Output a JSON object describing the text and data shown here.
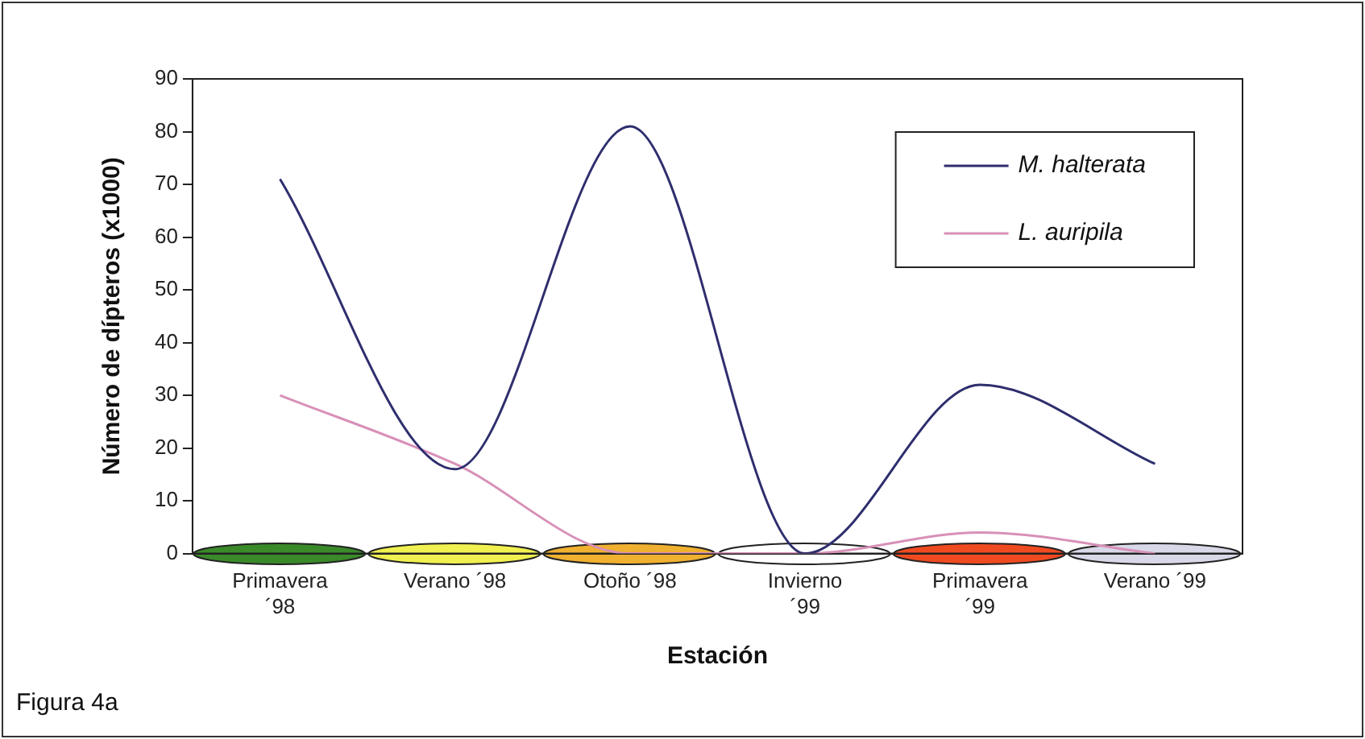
{
  "chart_data": {
    "type": "line",
    "xlabel": "Estación",
    "ylabel": "Número de dípteros (x1000)",
    "categories": [
      "Primavera ´98",
      "Verano ´98",
      "Otoño ´98",
      "Invierno ´99",
      "Primavera ´99",
      "Verano ´99"
    ],
    "series": [
      {
        "name": "M. halterata",
        "color": "#2e2e6e",
        "values": [
          71,
          16,
          81,
          0,
          32,
          17
        ]
      },
      {
        "name": "L. auripila",
        "color": "#d890b8",
        "values": [
          30,
          17,
          0,
          0,
          4,
          0
        ]
      }
    ],
    "ylim": [
      0,
      90
    ],
    "yticks": [
      0,
      10,
      20,
      30,
      40,
      50,
      60,
      70,
      80,
      90
    ],
    "grid": false,
    "legend": "top right",
    "marker": "none",
    "line_style": "solid",
    "annotations": [
      "Figura 4a"
    ]
  }
}
